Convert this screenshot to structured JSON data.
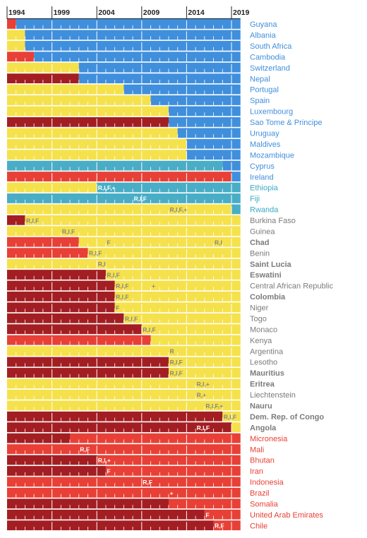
{
  "colors": {
    "red": "#e84036",
    "darkred": "#a31e22",
    "yellow": "#f5e14b",
    "blue": "#3f8fdd",
    "teal": "#49adc6",
    "label_blue": "#3f8fdd",
    "label_teal": "#39a9c4",
    "label_gray": "#7b7b7b",
    "label_red": "#e84036",
    "note_gray": "#858585"
  },
  "chart_data": {
    "type": "bar",
    "x_axis": {
      "min": 1994,
      "max": 2019,
      "ticks": [
        1994,
        1999,
        2004,
        2009,
        2014,
        2019
      ]
    },
    "rows": [
      {
        "country": "Guyana",
        "bold": false,
        "label_color": "blue",
        "segments": [
          [
            "red",
            1994,
            1995
          ],
          [
            "blue",
            1995,
            2020
          ]
        ],
        "notes": []
      },
      {
        "country": "Albania",
        "bold": false,
        "label_color": "blue",
        "segments": [
          [
            "yellow",
            1994,
            1996
          ],
          [
            "blue",
            1996,
            2020
          ]
        ],
        "notes": []
      },
      {
        "country": "South Africa",
        "bold": false,
        "label_color": "blue",
        "segments": [
          [
            "yellow",
            1994,
            1996
          ],
          [
            "blue",
            1996,
            2020
          ]
        ],
        "notes": []
      },
      {
        "country": "Cambodia",
        "bold": false,
        "label_color": "blue",
        "segments": [
          [
            "red",
            1994,
            1997
          ],
          [
            "blue",
            1997,
            2020
          ]
        ],
        "notes": []
      },
      {
        "country": "Switzerland",
        "bold": false,
        "label_color": "blue",
        "segments": [
          [
            "yellow",
            1994,
            2002
          ],
          [
            "blue",
            2002,
            2020
          ]
        ],
        "notes": []
      },
      {
        "country": "Nepal",
        "bold": false,
        "label_color": "blue",
        "segments": [
          [
            "darkred",
            1994,
            2002
          ],
          [
            "blue",
            2002,
            2020
          ]
        ],
        "notes": []
      },
      {
        "country": "Portugal",
        "bold": false,
        "label_color": "blue",
        "segments": [
          [
            "yellow",
            1994,
            2007
          ],
          [
            "blue",
            2007,
            2020
          ]
        ],
        "notes": []
      },
      {
        "country": "Spain",
        "bold": false,
        "label_color": "blue",
        "segments": [
          [
            "yellow",
            1994,
            2010
          ],
          [
            "blue",
            2010,
            2020
          ]
        ],
        "notes": []
      },
      {
        "country": "Luxembourg",
        "bold": false,
        "label_color": "blue",
        "segments": [
          [
            "yellow",
            1994,
            2012
          ],
          [
            "blue",
            2012,
            2020
          ]
        ],
        "notes": []
      },
      {
        "country": "Sao Tome & Principe",
        "bold": false,
        "label_color": "blue",
        "segments": [
          [
            "darkred",
            1994,
            2012
          ],
          [
            "blue",
            2012,
            2020
          ]
        ],
        "notes": []
      },
      {
        "country": "Uruguay",
        "bold": false,
        "label_color": "blue",
        "segments": [
          [
            "yellow",
            1994,
            2013
          ],
          [
            "blue",
            2013,
            2020
          ]
        ],
        "notes": []
      },
      {
        "country": "Maldives",
        "bold": false,
        "label_color": "blue",
        "segments": [
          [
            "yellow",
            1994,
            2014
          ],
          [
            "blue",
            2014,
            2020
          ]
        ],
        "notes": []
      },
      {
        "country": "Mozambique",
        "bold": false,
        "label_color": "blue",
        "segments": [
          [
            "yellow",
            1994,
            2014
          ],
          [
            "blue",
            2014,
            2020
          ]
        ],
        "notes": []
      },
      {
        "country": "Cyprus",
        "bold": false,
        "label_color": "blue",
        "segments": [
          [
            "teal",
            1994,
            2018
          ],
          [
            "blue",
            2018,
            2020
          ]
        ],
        "notes": []
      },
      {
        "country": "Ireland",
        "bold": false,
        "label_color": "blue",
        "segments": [
          [
            "red",
            1994,
            2019
          ],
          [
            "blue",
            2019,
            2020
          ]
        ],
        "notes": []
      },
      {
        "country": "Ethiopia",
        "bold": false,
        "label_color": "teal",
        "segments": [
          [
            "yellow",
            1994,
            2004
          ],
          [
            "teal",
            2004,
            2020
          ]
        ],
        "notes": [
          {
            "text": "R,I,F,+",
            "year": 2004
          }
        ]
      },
      {
        "country": "Fiji",
        "bold": false,
        "label_color": "teal",
        "segments": [
          [
            "teal",
            1994,
            2020
          ]
        ],
        "notes": [
          {
            "text": "R,I,F",
            "year": 2008
          }
        ]
      },
      {
        "country": "Rwanda",
        "bold": false,
        "label_color": "teal",
        "segments": [
          [
            "yellow",
            1994,
            2019
          ],
          [
            "teal",
            2019,
            2020
          ]
        ],
        "notes": [
          {
            "text": "R,I,F,+",
            "year": 2012
          }
        ]
      },
      {
        "country": "Burkina Faso",
        "bold": false,
        "label_color": "gray",
        "segments": [
          [
            "darkred",
            1994,
            1996
          ],
          [
            "yellow",
            1996,
            2020
          ]
        ],
        "notes": [
          {
            "text": "R,I,F",
            "year": 1996
          }
        ]
      },
      {
        "country": "Guinea",
        "bold": false,
        "label_color": "gray",
        "segments": [
          [
            "yellow",
            1994,
            2020
          ]
        ],
        "notes": [
          {
            "text": "R,I,F",
            "year": 2000
          }
        ]
      },
      {
        "country": "Chad",
        "bold": true,
        "label_color": "gray",
        "segments": [
          [
            "red",
            1994,
            2002
          ],
          [
            "yellow",
            2002,
            2020
          ]
        ],
        "notes": [
          {
            "text": "F",
            "year": 2005
          },
          {
            "text": "R,I",
            "year": 2017
          }
        ]
      },
      {
        "country": "Benin",
        "bold": false,
        "label_color": "gray",
        "segments": [
          [
            "red",
            1994,
            2003
          ],
          [
            "yellow",
            2003,
            2020
          ]
        ],
        "notes": [
          {
            "text": "R,I,F",
            "year": 2003
          }
        ]
      },
      {
        "country": "Saint Lucia",
        "bold": true,
        "label_color": "gray",
        "segments": [
          [
            "yellow",
            1994,
            2020
          ]
        ],
        "notes": [
          {
            "text": "R,I",
            "year": 2004
          }
        ]
      },
      {
        "country": "Eswatini",
        "bold": true,
        "label_color": "gray",
        "segments": [
          [
            "darkred",
            1994,
            2005
          ],
          [
            "yellow",
            2005,
            2020
          ]
        ],
        "notes": [
          {
            "text": "R,I,F",
            "year": 2005
          }
        ]
      },
      {
        "country": "Central African Republic",
        "bold": false,
        "label_color": "gray",
        "segments": [
          [
            "darkred",
            1994,
            2006
          ],
          [
            "yellow",
            2006,
            2020
          ]
        ],
        "notes": [
          {
            "text": "R,I,F",
            "year": 2006
          },
          {
            "text": "+",
            "year": 2010
          }
        ]
      },
      {
        "country": "Colombia",
        "bold": true,
        "label_color": "gray",
        "segments": [
          [
            "darkred",
            1994,
            2006
          ],
          [
            "yellow",
            2006,
            2020
          ]
        ],
        "notes": [
          {
            "text": "R,I,F",
            "year": 2006
          }
        ]
      },
      {
        "country": "Niger",
        "bold": false,
        "label_color": "gray",
        "segments": [
          [
            "darkred",
            1994,
            2006
          ],
          [
            "yellow",
            2006,
            2020
          ]
        ],
        "notes": [
          {
            "text": "F",
            "year": 2006
          }
        ]
      },
      {
        "country": "Togo",
        "bold": false,
        "label_color": "gray",
        "segments": [
          [
            "darkred",
            1994,
            2007
          ],
          [
            "yellow",
            2007,
            2020
          ]
        ],
        "notes": [
          {
            "text": "R,I,F",
            "year": 2007
          }
        ]
      },
      {
        "country": "Monaco",
        "bold": false,
        "label_color": "gray",
        "segments": [
          [
            "darkred",
            1994,
            2009
          ],
          [
            "yellow",
            2009,
            2020
          ]
        ],
        "notes": [
          {
            "text": "R,I,F",
            "year": 2009
          }
        ]
      },
      {
        "country": "Kenya",
        "bold": false,
        "label_color": "gray",
        "segments": [
          [
            "red",
            1994,
            2010
          ],
          [
            "yellow",
            2010,
            2020
          ]
        ],
        "notes": []
      },
      {
        "country": "Argentina",
        "bold": false,
        "label_color": "gray",
        "segments": [
          [
            "yellow",
            1994,
            2020
          ]
        ],
        "notes": [
          {
            "text": "R",
            "year": 2012
          }
        ]
      },
      {
        "country": "Lesotho",
        "bold": false,
        "label_color": "gray",
        "segments": [
          [
            "darkred",
            1994,
            2012
          ],
          [
            "yellow",
            2012,
            2020
          ]
        ],
        "notes": [
          {
            "text": "R,I,F",
            "year": 2012
          }
        ]
      },
      {
        "country": "Mauritius",
        "bold": true,
        "label_color": "gray",
        "segments": [
          [
            "darkred",
            1994,
            2012
          ],
          [
            "yellow",
            2012,
            2020
          ]
        ],
        "notes": [
          {
            "text": "R,I,F",
            "year": 2012
          }
        ]
      },
      {
        "country": "Eritrea",
        "bold": true,
        "label_color": "gray",
        "segments": [
          [
            "yellow",
            1994,
            2020
          ]
        ],
        "notes": [
          {
            "text": "R,I,+",
            "year": 2015
          }
        ]
      },
      {
        "country": "Liechtenstein",
        "bold": false,
        "label_color": "gray",
        "segments": [
          [
            "yellow",
            1994,
            2020
          ]
        ],
        "notes": [
          {
            "text": "R,+",
            "year": 2015
          }
        ]
      },
      {
        "country": "Nauru",
        "bold": true,
        "label_color": "gray",
        "segments": [
          [
            "yellow",
            1994,
            2020
          ]
        ],
        "notes": [
          {
            "text": "R,I,F,+",
            "year": 2016
          }
        ]
      },
      {
        "country": "Dem. Rep. of Congo",
        "bold": true,
        "label_color": "gray",
        "segments": [
          [
            "darkred",
            1994,
            2018
          ],
          [
            "yellow",
            2018,
            2020
          ]
        ],
        "notes": [
          {
            "text": "R,I,F",
            "year": 2018
          }
        ]
      },
      {
        "country": "Angola",
        "bold": true,
        "label_color": "gray",
        "segments": [
          [
            "darkred",
            1994,
            2019
          ],
          [
            "yellow",
            2019,
            2020
          ]
        ],
        "notes": [
          {
            "text": "R,I,F",
            "year": 2015
          }
        ]
      },
      {
        "country": "Micronesia",
        "bold": false,
        "label_color": "red",
        "segments": [
          [
            "darkred",
            1994,
            2001
          ],
          [
            "red",
            2001,
            2020
          ]
        ],
        "notes": []
      },
      {
        "country": "Mali",
        "bold": false,
        "label_color": "red",
        "segments": [
          [
            "red",
            1994,
            2020
          ]
        ],
        "notes": [
          {
            "text": "R,F",
            "year": 2002
          }
        ]
      },
      {
        "country": "Bhutan",
        "bold": false,
        "label_color": "red",
        "segments": [
          [
            "darkred",
            1994,
            2004
          ],
          [
            "red",
            2004,
            2020
          ]
        ],
        "notes": [
          {
            "text": "R,I,+",
            "year": 2004
          }
        ]
      },
      {
        "country": "Iran",
        "bold": false,
        "label_color": "red",
        "segments": [
          [
            "darkred",
            1994,
            2005
          ],
          [
            "red",
            2005,
            2020
          ]
        ],
        "notes": [
          {
            "text": "F",
            "year": 2005
          }
        ]
      },
      {
        "country": "Indonesia",
        "bold": false,
        "label_color": "red",
        "segments": [
          [
            "red",
            1994,
            2020
          ]
        ],
        "notes": [
          {
            "text": "R,F",
            "year": 2009
          }
        ]
      },
      {
        "country": "Brazil",
        "bold": false,
        "label_color": "red",
        "segments": [
          [
            "red",
            1994,
            2020
          ]
        ],
        "notes": [
          {
            "text": "+",
            "year": 2012
          }
        ]
      },
      {
        "country": "Somalia",
        "bold": false,
        "label_color": "red",
        "segments": [
          [
            "darkred",
            1994,
            2012
          ],
          [
            "red",
            2012,
            2020
          ]
        ],
        "notes": []
      },
      {
        "country": "United Arab Emirates",
        "bold": false,
        "label_color": "red",
        "segments": [
          [
            "darkred",
            1994,
            2016
          ],
          [
            "red",
            2016,
            2020
          ]
        ],
        "notes": [
          {
            "text": "F",
            "year": 2016
          }
        ]
      },
      {
        "country": "Chile",
        "bold": false,
        "label_color": "red",
        "segments": [
          [
            "darkred",
            1994,
            2017
          ],
          [
            "red",
            2017,
            2020
          ]
        ],
        "notes": [
          {
            "text": "R,F",
            "year": 2017
          }
        ]
      }
    ]
  }
}
